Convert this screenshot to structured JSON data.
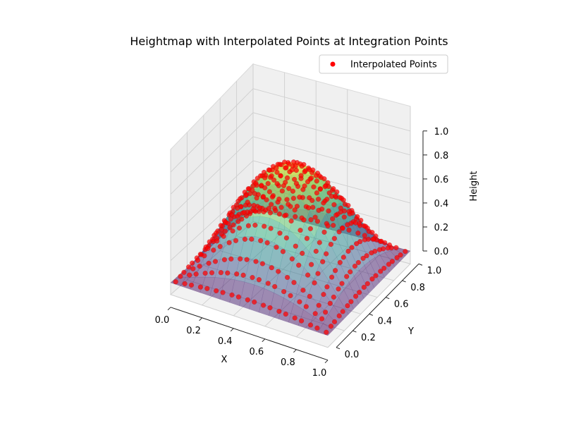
{
  "chart_data": {
    "type": "surface3d",
    "title": "Heightmap with Interpolated Points at Integration Points",
    "xlabel": "X",
    "ylabel": "Y",
    "zlabel": "Height",
    "xlim": [
      0,
      1
    ],
    "ylim": [
      0,
      1
    ],
    "zlim": [
      0,
      1
    ],
    "x_ticks": [
      "0.0",
      "0.2",
      "0.4",
      "0.6",
      "0.8",
      "1.0"
    ],
    "y_ticks": [
      "0.0",
      "0.2",
      "0.4",
      "0.6",
      "0.8",
      "1.0"
    ],
    "z_ticks": [
      "0.0",
      "0.2",
      "0.4",
      "0.6",
      "0.8",
      "1.0"
    ],
    "surface": {
      "function": "sin(pi*x)*sin(pi*y)",
      "grid_resolution": 16,
      "colormap": "viridis",
      "alpha": 0.5
    },
    "series": [
      {
        "name": "Interpolated Points",
        "type": "scatter",
        "color": "#ff0000",
        "elements_per_side": 10,
        "gauss_points_1d": [
          0.2113,
          0.7887
        ],
        "z_function": "sin(pi*x)*sin(pi*y)"
      }
    ],
    "legend": {
      "position": "top-right"
    },
    "grid": true
  }
}
